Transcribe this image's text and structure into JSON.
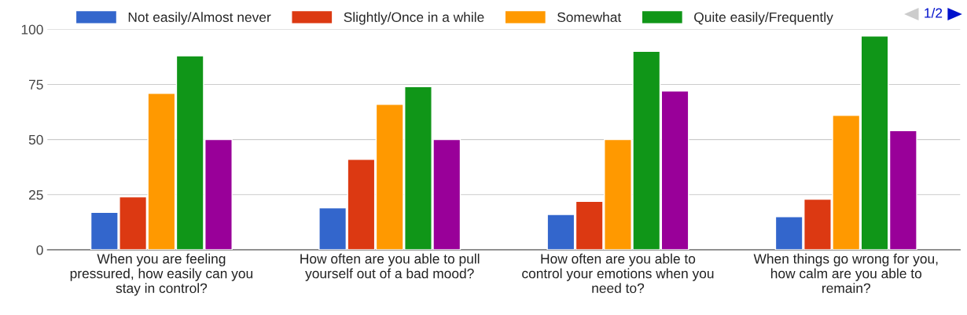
{
  "chart_data": {
    "type": "bar",
    "categories": [
      "When you are feeling pressured, how easily can you stay in control?",
      "How often are you able to pull yourself out of a bad mood?",
      "How often are you able to control your emotions when you need to?",
      "When things go wrong for you, how calm are you able to remain?"
    ],
    "series": [
      {
        "name": "Not easily/Almost never",
        "color": "#3366cc",
        "values": [
          17,
          19,
          16,
          15
        ]
      },
      {
        "name": "Slightly/Once in a while",
        "color": "#dc3912",
        "values": [
          24,
          41,
          22,
          23
        ]
      },
      {
        "name": "Somewhat",
        "color": "#ff9900",
        "values": [
          71,
          66,
          50,
          61
        ]
      },
      {
        "name": "Quite easily/Frequently",
        "color": "#109618",
        "values": [
          88,
          74,
          90,
          97
        ]
      },
      {
        "color": "#990099",
        "values": [
          50,
          50,
          72,
          54
        ]
      }
    ],
    "ylim": [
      0,
      100
    ],
    "yticks": [
      0,
      25,
      50,
      75,
      100
    ],
    "grid": "y",
    "legend": "top",
    "annotations": [
      "1/2"
    ]
  }
}
